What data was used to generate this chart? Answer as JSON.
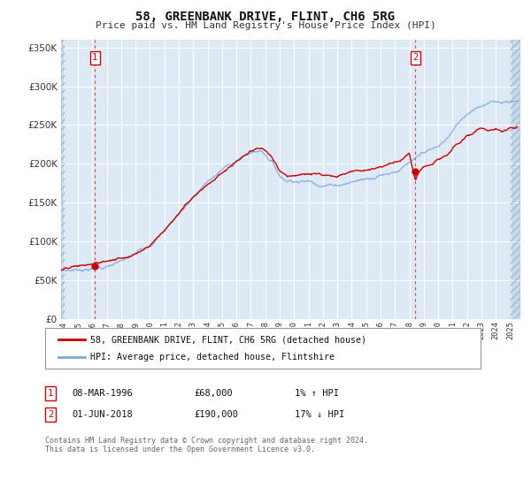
{
  "title": "58, GREENBANK DRIVE, FLINT, CH6 5RG",
  "subtitle": "Price paid vs. HM Land Registry's House Price Index (HPI)",
  "legend_line1": "58, GREENBANK DRIVE, FLINT, CH6 5RG (detached house)",
  "legend_line2": "HPI: Average price, detached house, Flintshire",
  "marker1_date": "08-MAR-1996",
  "marker1_price": 68000,
  "marker1_hpi": "1% ↑ HPI",
  "marker2_date": "01-JUN-2018",
  "marker2_price": 190000,
  "marker2_hpi": "17% ↓ HPI",
  "footer": "Contains HM Land Registry data © Crown copyright and database right 2024.\nThis data is licensed under the Open Government Licence v3.0.",
  "ylim": [
    0,
    360000
  ],
  "xlim_start": 1993.83,
  "xlim_end": 2025.7,
  "bg_color": "#ddeaf5",
  "grid_color": "#ffffff",
  "red_line_color": "#cc0000",
  "blue_line_color": "#7aaadd",
  "marker_dot_color": "#cc0000",
  "marker_box_color": "#cc0000",
  "dashed_line_color": "#dd4444",
  "sale1_x": 1996.18,
  "sale1_y": 68000,
  "sale2_x": 2018.42,
  "sale2_y": 190000,
  "hpi_keypoints_t": [
    1993.83,
    1994.5,
    1995,
    1996,
    1997,
    1998,
    1999,
    2000,
    2001,
    2002,
    2003,
    2004,
    2005,
    2006,
    2007,
    2007.8,
    2008.5,
    2009,
    2009.5,
    2010,
    2011,
    2012,
    2013,
    2014,
    2015,
    2016,
    2017,
    2018,
    2018.5,
    2019,
    2020,
    2020.5,
    2021,
    2021.5,
    2022,
    2022.5,
    2023,
    2023.5,
    2024,
    2024.5,
    2025,
    2025.5
  ],
  "hpi_keypoints_v": [
    63000,
    64000,
    65500,
    68000,
    71000,
    76000,
    84000,
    98000,
    118000,
    140000,
    163000,
    182000,
    197000,
    210000,
    220000,
    223000,
    210000,
    193000,
    188000,
    190000,
    190000,
    188000,
    190000,
    195000,
    200000,
    208000,
    215000,
    225000,
    228000,
    235000,
    240000,
    248000,
    260000,
    272000,
    283000,
    292000,
    298000,
    300000,
    302000,
    303000,
    305000,
    306000
  ],
  "red_keypoints_t": [
    1993.83,
    1994.5,
    1995,
    1996,
    1996.18,
    1997,
    1998,
    1999,
    2000,
    2001,
    2002,
    2003,
    2004,
    2005,
    2006,
    2007,
    2007.8,
    2008.5,
    2009,
    2009.5,
    2010,
    2011,
    2012,
    2013,
    2014,
    2015,
    2016,
    2017,
    2018,
    2018.42,
    2018.6,
    2019,
    2019.5,
    2020,
    2020.5,
    2021,
    2021.5,
    2022,
    2022.5,
    2023,
    2023.5,
    2024,
    2024.5,
    2025,
    2025.5
  ],
  "red_keypoints_v": [
    63000,
    64000,
    65500,
    67500,
    68000,
    71000,
    76000,
    84000,
    98000,
    118000,
    140000,
    163000,
    182000,
    197000,
    210000,
    220000,
    223000,
    210000,
    193000,
    188000,
    190000,
    190000,
    188000,
    190000,
    195000,
    200000,
    208000,
    215000,
    225000,
    190000,
    200000,
    208000,
    210000,
    215000,
    220000,
    228000,
    235000,
    243000,
    248000,
    252000,
    250000,
    253000,
    248000,
    250000,
    252000
  ]
}
